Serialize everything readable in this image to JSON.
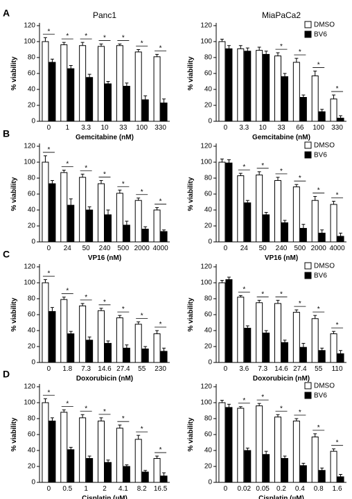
{
  "figure": {
    "panels": [
      "A",
      "B",
      "C",
      "D"
    ],
    "column_titles": [
      "Panc1",
      "MiaPaCa2"
    ],
    "legend": [
      {
        "label": "DMSO",
        "color": "#ffffff"
      },
      {
        "label": "BV6",
        "color": "#000000"
      }
    ],
    "significance_marker": "*"
  },
  "chart_data": [
    {
      "type": "bar",
      "panel": "A",
      "title": "Panc1",
      "xlabel": "Gemcitabine (nM)",
      "ylabel": "% viability",
      "ylim": [
        0,
        120
      ],
      "yticks": [
        0,
        20,
        40,
        60,
        80,
        100,
        120
      ],
      "categories": [
        "0",
        "1",
        "3.3",
        "10",
        "33",
        "100",
        "330"
      ],
      "series": [
        {
          "name": "DMSO",
          "values": [
            100,
            96,
            95,
            94,
            95,
            87,
            81
          ],
          "errors": [
            5,
            3,
            4,
            3,
            2,
            3,
            3
          ]
        },
        {
          "name": "BV6",
          "values": [
            74,
            66,
            55,
            47,
            44,
            27,
            23
          ],
          "errors": [
            4,
            4,
            4,
            3,
            4,
            5,
            5
          ]
        }
      ],
      "significant": [
        true,
        true,
        true,
        true,
        true,
        true,
        true
      ],
      "legend": false
    },
    {
      "type": "bar",
      "panel": "A",
      "title": "MiaPaCa2",
      "xlabel": "Gemcitabine (nM)",
      "ylabel": "% viability",
      "ylim": [
        0,
        120
      ],
      "yticks": [
        0,
        20,
        40,
        60,
        80,
        100,
        120
      ],
      "categories": [
        "0",
        "3.3",
        "10",
        "33",
        "66",
        "100",
        "330"
      ],
      "series": [
        {
          "name": "DMSO",
          "values": [
            100,
            91,
            89,
            82,
            74,
            57,
            28
          ],
          "errors": [
            3,
            4,
            4,
            4,
            5,
            6,
            5
          ]
        },
        {
          "name": "BV6",
          "values": [
            91,
            88,
            84,
            56,
            30,
            12,
            4
          ],
          "errors": [
            4,
            4,
            4,
            4,
            3,
            3,
            3
          ]
        }
      ],
      "significant": [
        false,
        false,
        false,
        true,
        true,
        true,
        true
      ],
      "legend": true
    },
    {
      "type": "bar",
      "panel": "B",
      "title": "",
      "xlabel": "VP16 (nM)",
      "ylabel": "% viability",
      "ylim": [
        0,
        120
      ],
      "yticks": [
        0,
        20,
        40,
        60,
        80,
        100,
        120
      ],
      "categories": [
        "0",
        "24",
        "50",
        "240",
        "500",
        "2000",
        "4000"
      ],
      "series": [
        {
          "name": "DMSO",
          "values": [
            100,
            87,
            81,
            73,
            61,
            52,
            40
          ],
          "errors": [
            8,
            3,
            4,
            4,
            4,
            3,
            3
          ]
        },
        {
          "name": "BV6",
          "values": [
            73,
            46,
            40,
            34,
            21,
            16,
            13
          ],
          "errors": [
            4,
            8,
            4,
            6,
            5,
            3,
            2
          ]
        }
      ],
      "significant": [
        true,
        true,
        true,
        true,
        true,
        true,
        true
      ],
      "legend": false
    },
    {
      "type": "bar",
      "panel": "B",
      "title": "",
      "xlabel": "VP16 (nM)",
      "ylabel": "% viability",
      "ylim": [
        0,
        120
      ],
      "yticks": [
        0,
        20,
        40,
        60,
        80,
        100,
        120
      ],
      "categories": [
        "0",
        "24",
        "50",
        "240",
        "500",
        "2000",
        "4000"
      ],
      "series": [
        {
          "name": "DMSO",
          "values": [
            100,
            83,
            84,
            77,
            69,
            52,
            47
          ],
          "errors": [
            4,
            3,
            4,
            4,
            3,
            5,
            4
          ]
        },
        {
          "name": "BV6",
          "values": [
            99,
            49,
            34,
            24,
            17,
            11,
            7
          ],
          "errors": [
            4,
            3,
            3,
            3,
            5,
            4,
            4
          ]
        }
      ],
      "significant": [
        false,
        true,
        true,
        true,
        true,
        true,
        true
      ],
      "legend": true
    },
    {
      "type": "bar",
      "panel": "C",
      "title": "",
      "xlabel": "Doxorubicin (nM)",
      "ylabel": "% viability",
      "ylim": [
        0,
        120
      ],
      "yticks": [
        0,
        20,
        40,
        60,
        80,
        100,
        120
      ],
      "categories": [
        "0",
        "1.8",
        "7.3",
        "14.6",
        "27.4",
        "55",
        "230"
      ],
      "series": [
        {
          "name": "DMSO",
          "values": [
            100,
            79,
            71,
            65,
            56,
            48,
            36
          ],
          "errors": [
            4,
            3,
            3,
            3,
            3,
            3,
            4
          ]
        },
        {
          "name": "BV6",
          "values": [
            64,
            36,
            28,
            24,
            18,
            17,
            14
          ],
          "errors": [
            5,
            3,
            4,
            3,
            4,
            3,
            4
          ]
        }
      ],
      "significant": [
        true,
        true,
        true,
        true,
        true,
        true,
        true
      ],
      "legend": false
    },
    {
      "type": "bar",
      "panel": "C",
      "title": "",
      "xlabel": "Doxorubicin (nM)",
      "ylabel": "% viability",
      "ylim": [
        0,
        120
      ],
      "yticks": [
        0,
        20,
        40,
        60,
        80,
        100,
        120
      ],
      "categories": [
        "0",
        "3.6",
        "7.3",
        "14.6",
        "27.4",
        "55",
        "110"
      ],
      "series": [
        {
          "name": "DMSO",
          "values": [
            100,
            82,
            75,
            74,
            63,
            55,
            36
          ],
          "errors": [
            3,
            2,
            3,
            4,
            3,
            4,
            3
          ]
        },
        {
          "name": "BV6",
          "values": [
            104,
            43,
            37,
            25,
            19,
            15,
            11
          ],
          "errors": [
            3,
            3,
            3,
            3,
            5,
            3,
            4
          ]
        }
      ],
      "significant": [
        false,
        true,
        true,
        true,
        true,
        true,
        true
      ],
      "legend": true
    },
    {
      "type": "bar",
      "panel": "D",
      "title": "",
      "xlabel": "Cisplatin (µM)",
      "ylabel": "% viability",
      "ylim": [
        0,
        120
      ],
      "yticks": [
        0,
        20,
        40,
        60,
        80,
        100,
        120
      ],
      "categories": [
        "0",
        "0.5",
        "1",
        "2",
        "4.1",
        "8.2",
        "16.5"
      ],
      "series": [
        {
          "name": "DMSO",
          "values": [
            100,
            88,
            81,
            77,
            68,
            54,
            30
          ],
          "errors": [
            5,
            3,
            4,
            4,
            4,
            5,
            3
          ]
        },
        {
          "name": "BV6",
          "values": [
            77,
            41,
            30,
            25,
            20,
            13,
            8
          ],
          "errors": [
            4,
            3,
            3,
            3,
            2,
            2,
            4
          ]
        }
      ],
      "significant": [
        true,
        true,
        true,
        true,
        true,
        true,
        true
      ],
      "legend": false
    },
    {
      "type": "bar",
      "panel": "D",
      "title": "",
      "xlabel": "Cisplatin (µM)",
      "ylabel": "% viability",
      "ylim": [
        0,
        120
      ],
      "yticks": [
        0,
        20,
        40,
        60,
        80,
        100,
        120
      ],
      "categories": [
        "0",
        "0.02",
        "0.05",
        "0.2",
        "0.4",
        "0.8",
        "1.6"
      ],
      "series": [
        {
          "name": "DMSO",
          "values": [
            100,
            93,
            96,
            82,
            77,
            57,
            39
          ],
          "errors": [
            3,
            2,
            3,
            3,
            3,
            4,
            3
          ]
        },
        {
          "name": "BV6",
          "values": [
            94,
            40,
            35,
            30,
            21,
            15,
            7
          ],
          "errors": [
            4,
            3,
            4,
            3,
            3,
            3,
            3
          ]
        }
      ],
      "significant": [
        false,
        true,
        true,
        true,
        true,
        true,
        true
      ],
      "legend": true
    }
  ]
}
